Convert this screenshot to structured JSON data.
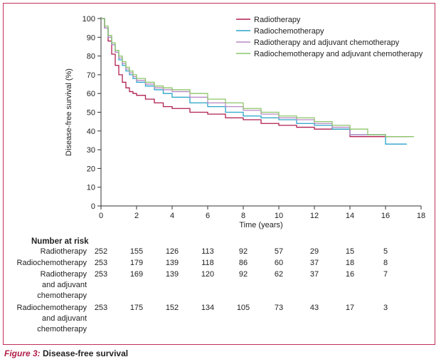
{
  "chart_data": {
    "type": "line",
    "step": true,
    "xlabel": "Time (years)",
    "ylabel": "Disease-free survival (%)",
    "xlim": [
      0,
      18
    ],
    "ylim": [
      0,
      100
    ],
    "xticks": [
      0,
      2,
      4,
      6,
      8,
      10,
      12,
      14,
      16,
      18
    ],
    "yticks": [
      0,
      10,
      20,
      30,
      40,
      50,
      60,
      70,
      80,
      90,
      100
    ],
    "grid": false,
    "legend_position": "top-right",
    "series": [
      {
        "name": "Radiotherapy",
        "color": "#b01e4f",
        "x": [
          0,
          0.2,
          0.4,
          0.6,
          0.8,
          1.0,
          1.2,
          1.4,
          1.6,
          1.8,
          2.0,
          2.5,
          3.0,
          3.5,
          4.0,
          5.0,
          6.0,
          7.0,
          8.0,
          9.0,
          10.0,
          11.0,
          12.0,
          13.0,
          14.0,
          15.0,
          16.0,
          17.0,
          17.3
        ],
        "y": [
          100,
          95,
          88,
          81,
          75,
          70,
          66,
          63,
          61,
          60,
          59,
          57,
          55,
          53,
          52,
          50,
          49,
          47,
          46,
          44,
          43,
          42,
          41,
          41,
          37,
          37,
          37,
          37,
          37
        ]
      },
      {
        "name": "Radiochemotherapy",
        "color": "#2aa3c9",
        "x": [
          0,
          0.2,
          0.4,
          0.6,
          0.8,
          1.0,
          1.2,
          1.4,
          1.6,
          1.8,
          2.0,
          2.5,
          3.0,
          3.5,
          4.0,
          5.0,
          6.0,
          7.0,
          8.0,
          9.0,
          10.0,
          11.0,
          12.0,
          13.0,
          14.0,
          15.0,
          16.0,
          16.5,
          17.2
        ],
        "y": [
          100,
          95,
          90,
          86,
          82,
          78,
          75,
          72,
          70,
          68,
          66,
          64,
          62,
          60,
          58,
          55,
          53,
          50,
          48,
          47,
          46,
          44,
          43,
          41,
          38,
          38,
          33,
          33,
          33
        ]
      },
      {
        "name": "Radiotherapy and adjuvant chemotherapy",
        "color": "#b888c3",
        "x": [
          0,
          0.2,
          0.4,
          0.6,
          0.8,
          1.0,
          1.2,
          1.4,
          1.6,
          1.8,
          2.0,
          2.5,
          3.0,
          3.5,
          4.0,
          5.0,
          6.0,
          7.0,
          8.0,
          9.0,
          10.0,
          11.0,
          12.0,
          13.0,
          14.0,
          15.0,
          16.0,
          17.0,
          17.5
        ],
        "y": [
          100,
          95,
          90,
          86,
          82,
          79,
          76,
          73,
          71,
          69,
          67,
          65,
          63,
          62,
          61,
          58,
          55,
          53,
          51,
          49,
          47,
          46,
          44,
          42,
          38,
          38,
          37,
          37,
          37
        ]
      },
      {
        "name": "Radiochemotherapy and adjuvant chemotherapy",
        "color": "#8cc66a",
        "x": [
          0,
          0.2,
          0.4,
          0.6,
          0.8,
          1.0,
          1.2,
          1.4,
          1.6,
          1.8,
          2.0,
          2.5,
          3.0,
          3.5,
          4.0,
          5.0,
          6.0,
          7.0,
          8.0,
          9.0,
          10.0,
          11.0,
          12.0,
          13.0,
          14.0,
          15.0,
          16.0,
          17.0,
          17.6
        ],
        "y": [
          100,
          96,
          91,
          87,
          83,
          80,
          77,
          74,
          72,
          70,
          68,
          66,
          64,
          63,
          62,
          60,
          57,
          55,
          52,
          50,
          48,
          47,
          45,
          43,
          41,
          38,
          37,
          37,
          37
        ]
      }
    ]
  },
  "risk_table": {
    "title": "Number at risk",
    "times": [
      0,
      2,
      4,
      6,
      8,
      10,
      12,
      14,
      16
    ],
    "rows": [
      {
        "label_lines": [
          "Radiotherapy"
        ],
        "values": [
          "252",
          "155",
          "126",
          "113",
          "92",
          "57",
          "29",
          "15",
          "5"
        ]
      },
      {
        "label_lines": [
          "Radiochemotherapy"
        ],
        "values": [
          "253",
          "179",
          "139",
          "118",
          "86",
          "60",
          "37",
          "18",
          "8"
        ]
      },
      {
        "label_lines": [
          "Radiotherapy",
          "and adjuvant",
          "chemotherapy"
        ],
        "values": [
          "253",
          "169",
          "139",
          "120",
          "92",
          "62",
          "37",
          "16",
          "7"
        ]
      },
      {
        "label_lines": [
          "Radiochemotherapy",
          "and adjuvant",
          "chemotherapy"
        ],
        "values": [
          "253",
          "175",
          "152",
          "134",
          "105",
          "73",
          "43",
          "17",
          "3"
        ]
      }
    ]
  },
  "caption": {
    "figure": "Figure 3:",
    "text": " Disease-free survival"
  }
}
